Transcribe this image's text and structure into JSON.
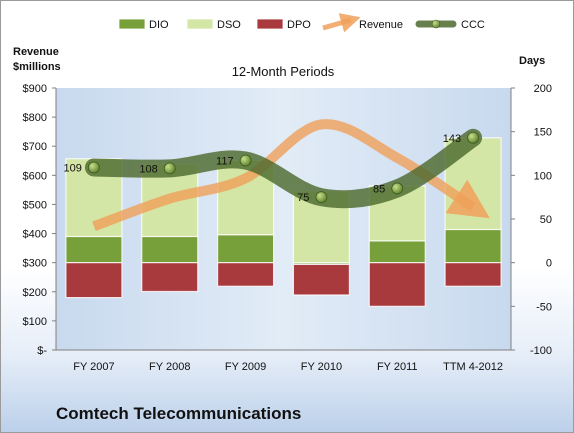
{
  "chart_data": {
    "type": "bar",
    "title": "12-Month Periods",
    "categories": [
      "FY 2007",
      "FY 2008",
      "FY 2009",
      "FY 2010",
      "FY 2011",
      "TTM 4-2012"
    ],
    "left_axis": {
      "label_line1": "Revenue",
      "label_line2": "$millions",
      "ylim": [
        0,
        900
      ],
      "ticks": [
        0,
        100,
        200,
        300,
        400,
        500,
        600,
        700,
        800,
        900
      ],
      "tick_labels": [
        "$-",
        "$100",
        "$200",
        "$300",
        "$400",
        "$500",
        "$600",
        "$700",
        "$800",
        "$900"
      ]
    },
    "right_axis": {
      "label": "Days",
      "ylim": [
        -100,
        200
      ],
      "ticks": [
        -100,
        -50,
        0,
        50,
        100,
        150,
        200
      ],
      "tick_labels": [
        "-100",
        "-50",
        "0",
        "50",
        "100",
        "150",
        "200"
      ]
    },
    "series": [
      {
        "name": "DIO",
        "kind": "stacked-bar",
        "color": "#77a03a",
        "values": [
          30,
          30,
          32,
          -2,
          25,
          38
        ]
      },
      {
        "name": "DSO",
        "kind": "stacked-bar",
        "color": "#d3e6a6",
        "values": [
          89,
          83,
          85,
          82,
          63,
          105
        ]
      },
      {
        "name": "DPO",
        "kind": "stacked-bar",
        "color": "#a83a3e",
        "values": [
          -40,
          -33,
          -27,
          -35,
          -50,
          -27
        ]
      },
      {
        "name": "Revenue",
        "kind": "line",
        "color": "#f0a05a",
        "values": [
          425,
          520,
          590,
          775,
          660,
          490
        ]
      },
      {
        "name": "CCC",
        "kind": "line",
        "color": "#4e6a2e",
        "values": [
          109,
          108,
          117,
          75,
          85,
          143
        ]
      }
    ],
    "data_labels": [
      "109",
      "108",
      "117",
      "75",
      "85",
      "143"
    ],
    "legend_position": "top",
    "grid": false
  },
  "footer": {
    "company": "Comtech Telecommunications"
  }
}
